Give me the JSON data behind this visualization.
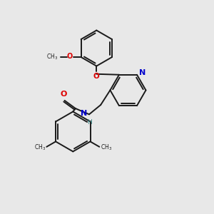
{
  "bg_color": "#e8e8e8",
  "bond_color": "#1a1a1a",
  "atom_colors": {
    "O": "#dd0000",
    "N": "#0000cc",
    "H": "#3a8a8a",
    "C": "#1a1a1a"
  },
  "figsize": [
    3.0,
    3.0
  ],
  "dpi": 100,
  "xlim": [
    0,
    10
  ],
  "ylim": [
    0,
    10
  ]
}
